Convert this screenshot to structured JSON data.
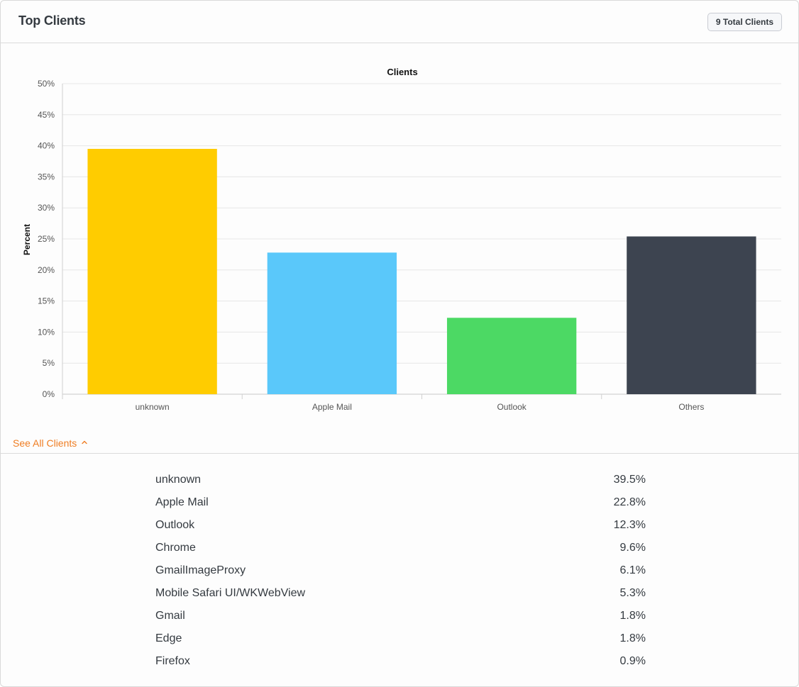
{
  "header": {
    "title": "Top Clients",
    "badge": "9 Total Clients"
  },
  "chart_data": {
    "type": "bar",
    "title": "Clients",
    "xlabel": "",
    "ylabel": "Percent",
    "ylim": [
      0,
      50
    ],
    "yticks": [
      "0%",
      "5%",
      "10%",
      "15%",
      "20%",
      "25%",
      "30%",
      "35%",
      "40%",
      "45%",
      "50%"
    ],
    "categories": [
      "unknown",
      "Apple Mail",
      "Outlook",
      "Others"
    ],
    "values": [
      39.5,
      22.8,
      12.3,
      25.4
    ],
    "colors": [
      "#ffcc00",
      "#5ac8fa",
      "#4cd964",
      "#3d4450"
    ],
    "grid": true,
    "legend": "none"
  },
  "toggle": {
    "label": "See All Clients",
    "icon": "chevron-up-icon",
    "color": "#ef7d22"
  },
  "clients": [
    {
      "name": "unknown",
      "value": "39.5%"
    },
    {
      "name": "Apple Mail",
      "value": "22.8%"
    },
    {
      "name": "Outlook",
      "value": "12.3%"
    },
    {
      "name": "Chrome",
      "value": "9.6%"
    },
    {
      "name": "GmailImageProxy",
      "value": "6.1%"
    },
    {
      "name": "Mobile Safari UI/WKWebView",
      "value": "5.3%"
    },
    {
      "name": "Gmail",
      "value": "1.8%"
    },
    {
      "name": "Edge",
      "value": "1.8%"
    },
    {
      "name": "Firefox",
      "value": "0.9%"
    }
  ]
}
